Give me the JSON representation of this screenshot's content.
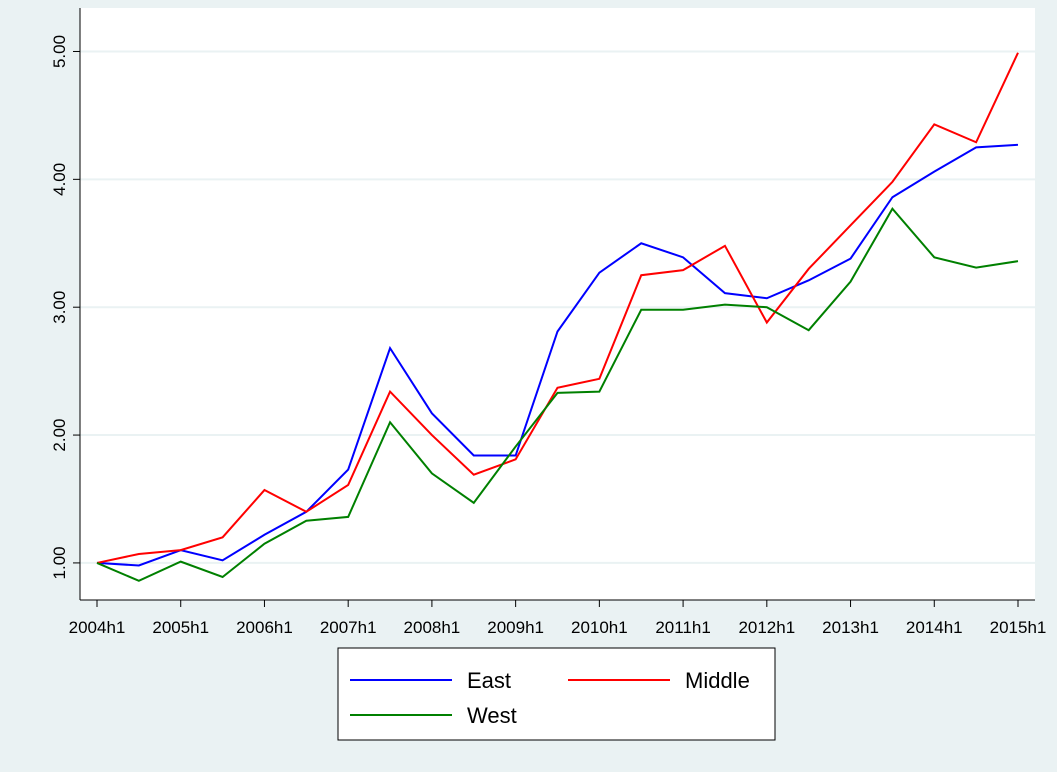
{
  "chart_data": {
    "type": "line",
    "categories": [
      "2004h1",
      null,
      "2005h1",
      null,
      "2006h1",
      null,
      "2007h1",
      null,
      "2008h1",
      null,
      "2009h1",
      null,
      "2010h1",
      null,
      "2011h1",
      null,
      "2012h1",
      null,
      "2013h1",
      null,
      "2014h1",
      null,
      "2015h1"
    ],
    "series": [
      {
        "name": "East",
        "color": "#0000ff",
        "values": [
          1.0,
          0.98,
          1.1,
          1.02,
          1.22,
          1.4,
          1.73,
          2.68,
          2.17,
          1.84,
          1.84,
          2.81,
          3.27,
          3.5,
          3.39,
          3.11,
          3.07,
          3.21,
          3.38,
          3.86,
          4.06,
          4.25,
          4.27
        ]
      },
      {
        "name": "Middle",
        "color": "#ff0000",
        "values": [
          1.0,
          1.07,
          1.1,
          1.2,
          1.57,
          1.4,
          1.61,
          2.34,
          2.0,
          1.69,
          1.81,
          2.37,
          2.44,
          3.25,
          3.29,
          3.48,
          2.88,
          3.3,
          3.64,
          3.98,
          4.43,
          4.29,
          4.99
        ]
      },
      {
        "name": "West",
        "color": "#008000",
        "values": [
          1.0,
          0.86,
          1.01,
          0.89,
          1.15,
          1.33,
          1.36,
          2.1,
          1.7,
          1.47,
          1.91,
          2.33,
          2.34,
          2.98,
          2.98,
          3.02,
          3.0,
          2.82,
          3.2,
          3.77,
          3.39,
          3.31,
          3.36
        ]
      }
    ],
    "ylim": [
      0.71,
      5.34
    ],
    "yticks": [
      {
        "value": 1,
        "label": "1.00"
      },
      {
        "value": 2,
        "label": "2.00"
      },
      {
        "value": 3,
        "label": "3.00"
      },
      {
        "value": 4,
        "label": "4.00"
      },
      {
        "value": 5,
        "label": "5.00"
      }
    ],
    "grid": true,
    "legend": "bottom"
  }
}
